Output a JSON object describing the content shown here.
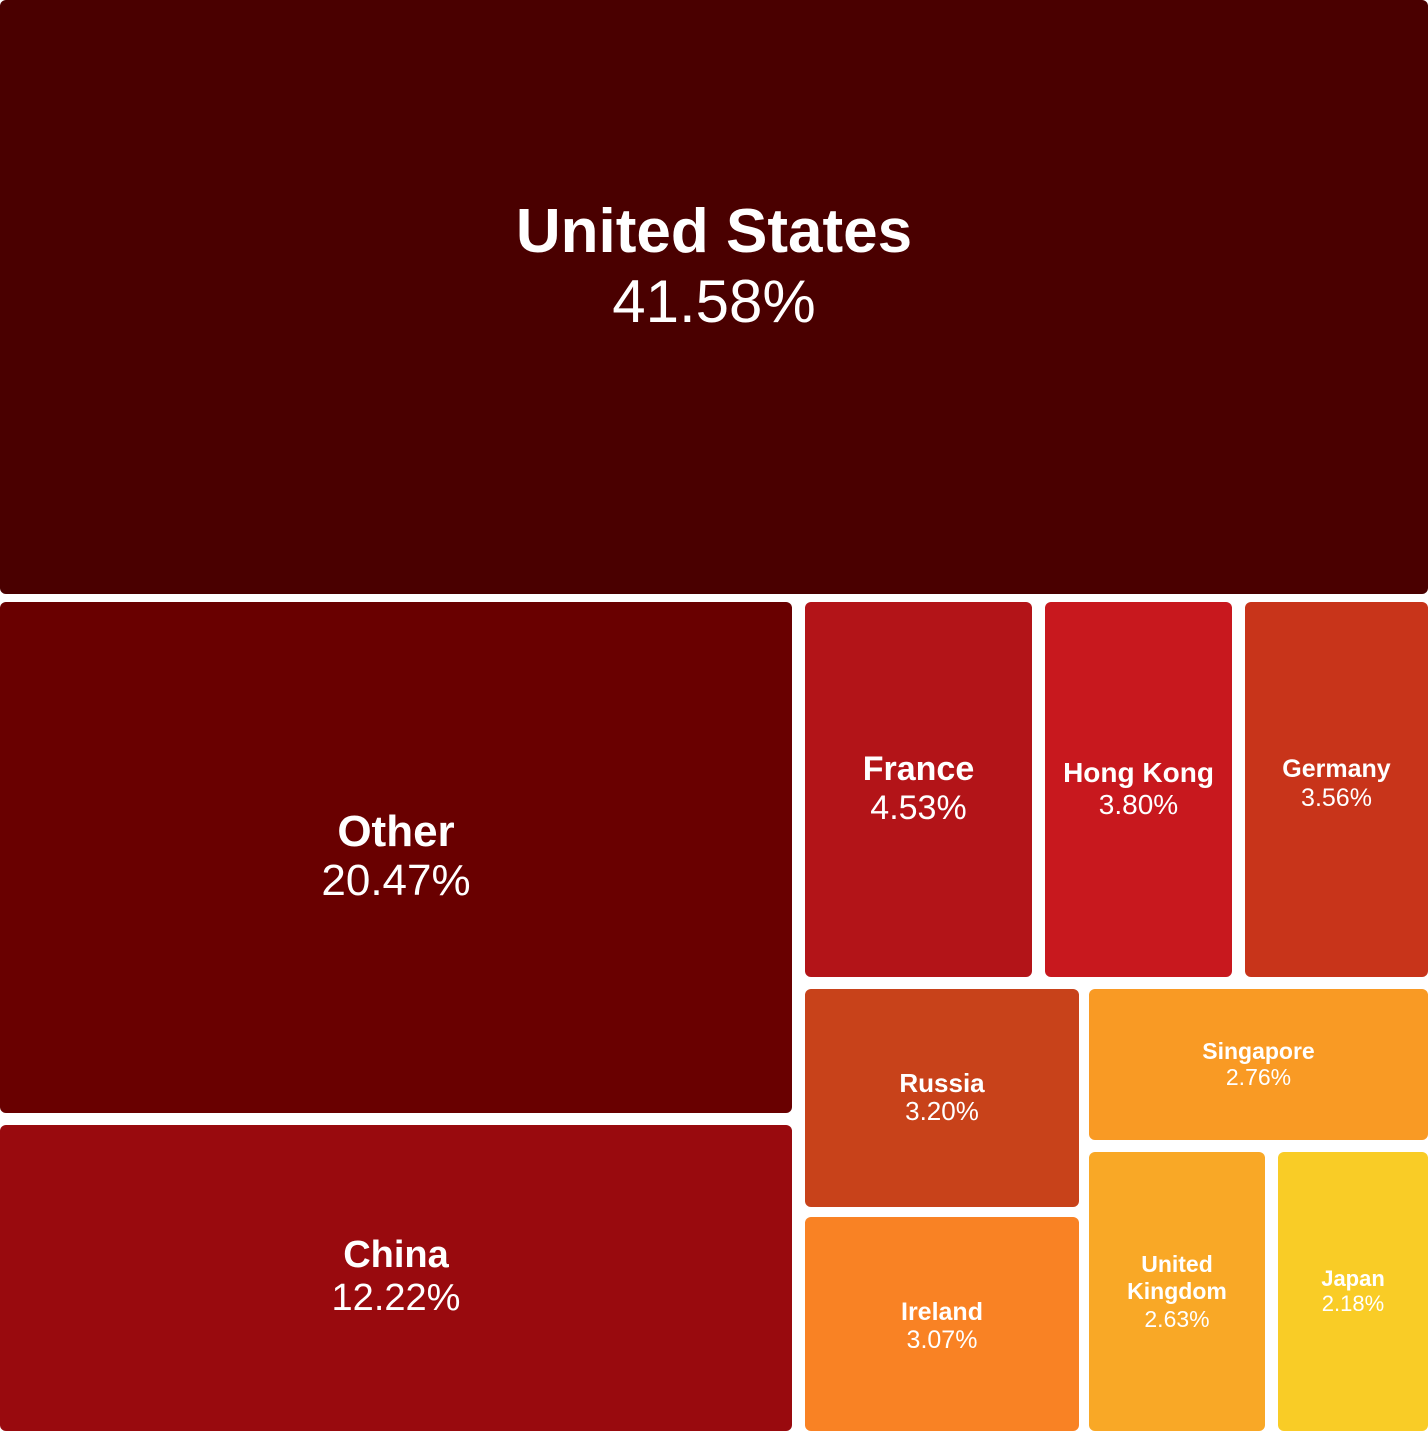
{
  "chart_data": {
    "type": "treemap",
    "title": "",
    "unit": "%",
    "items": [
      {
        "key": "united-states",
        "name": "United States",
        "label": "41.58%",
        "value": 41.58,
        "color": "#4a0000"
      },
      {
        "key": "other",
        "name": "Other",
        "label": "20.47%",
        "value": 20.47,
        "color": "#690000"
      },
      {
        "key": "china",
        "name": "China",
        "label": "12.22%",
        "value": 12.22,
        "color": "#990a0e"
      },
      {
        "key": "france",
        "name": "France",
        "label": "4.53%",
        "value": 4.53,
        "color": "#b31418"
      },
      {
        "key": "hong-kong",
        "name": "Hong Kong",
        "label": "3.80%",
        "value": 3.8,
        "color": "#c8181e"
      },
      {
        "key": "germany",
        "name": "Germany",
        "label": "3.56%",
        "value": 3.56,
        "color": "#c8341a"
      },
      {
        "key": "russia",
        "name": "Russia",
        "label": "3.20%",
        "value": 3.2,
        "color": "#c8421a"
      },
      {
        "key": "ireland",
        "name": "Ireland",
        "label": "3.07%",
        "value": 3.07,
        "color": "#f98224"
      },
      {
        "key": "singapore",
        "name": "Singapore",
        "label": "2.76%",
        "value": 2.76,
        "color": "#f99a24"
      },
      {
        "key": "united-kingdom",
        "name": "United\nKingdom",
        "label": "2.63%",
        "value": 2.63,
        "color": "#f9a826"
      },
      {
        "key": "japan",
        "name": "Japan",
        "label": "2.18%",
        "value": 2.18,
        "color": "#f9cc26"
      }
    ]
  }
}
